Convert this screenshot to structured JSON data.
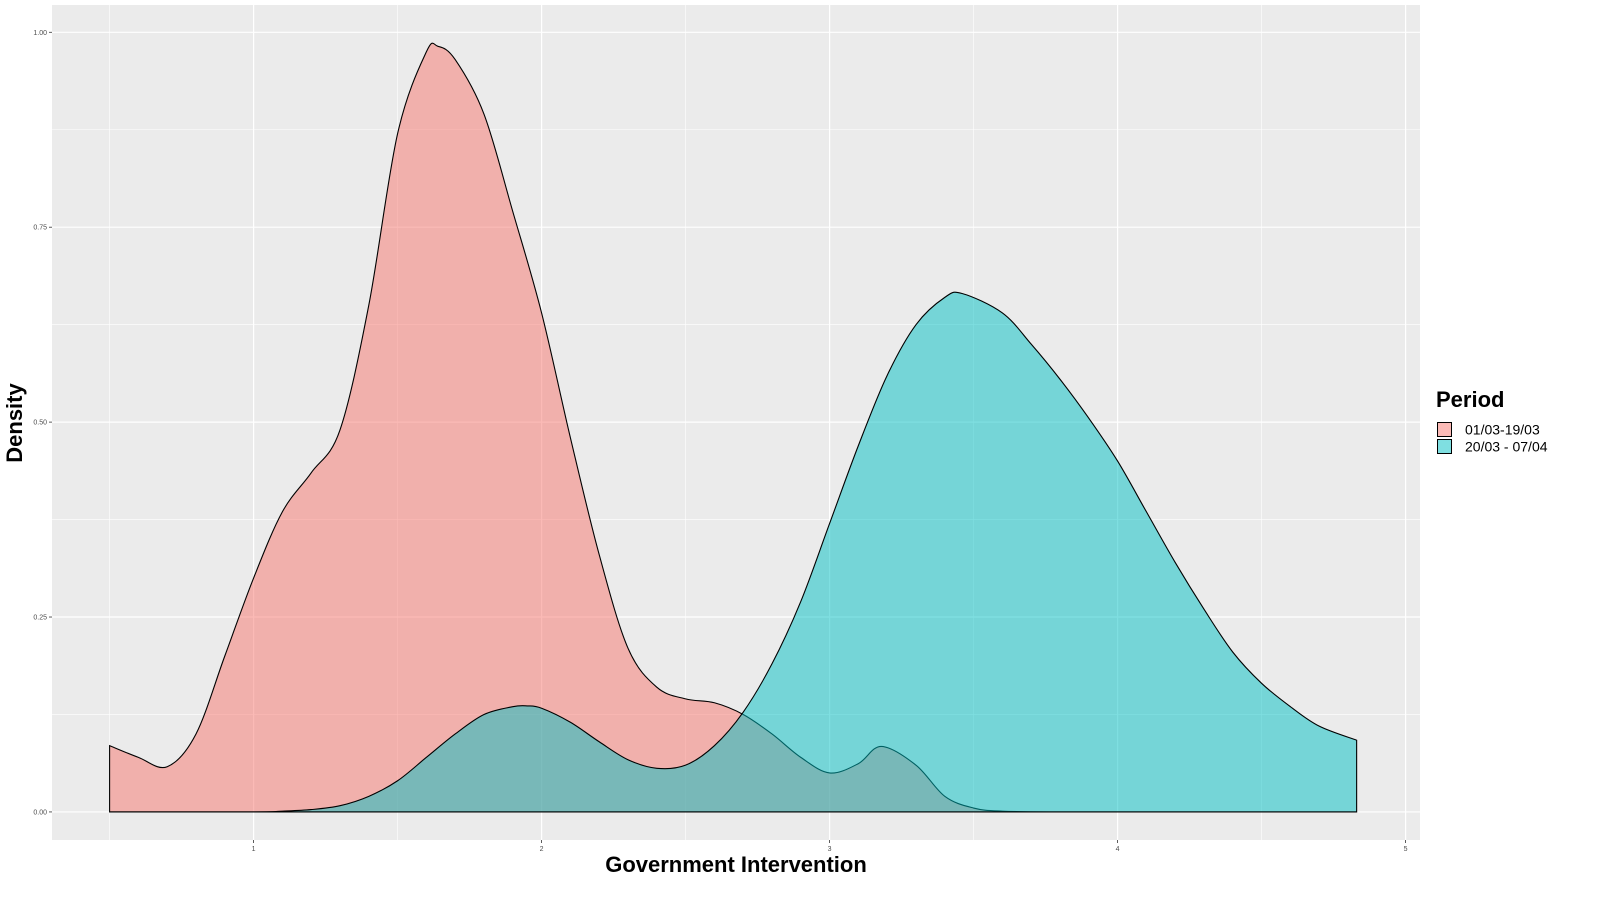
{
  "chart_data": {
    "type": "area",
    "subtype": "density",
    "title": "",
    "xlabel": "Government Intervention",
    "ylabel": "Density",
    "xlim": [
      0.3,
      5.05
    ],
    "ylim": [
      -0.036,
      1.035
    ],
    "x_ticks": [
      1,
      2,
      3,
      4,
      5
    ],
    "y_ticks": [
      0.0,
      0.25,
      0.5,
      0.75,
      1.0
    ],
    "x_tick_labels": [
      "1",
      "2",
      "3",
      "4",
      "5"
    ],
    "y_tick_labels": [
      "0.00",
      "0.25",
      "0.50",
      "0.75",
      "1.00"
    ],
    "grid": true,
    "legend": {
      "title": "Period",
      "position": "right"
    },
    "series": [
      {
        "name": "01/03-19/03",
        "color": "#F8766D",
        "points": [
          [
            0.5,
            0.085
          ],
          [
            0.6,
            0.07
          ],
          [
            0.7,
            0.058
          ],
          [
            0.8,
            0.1
          ],
          [
            0.9,
            0.2
          ],
          [
            1.0,
            0.3
          ],
          [
            1.1,
            0.385
          ],
          [
            1.2,
            0.435
          ],
          [
            1.3,
            0.49
          ],
          [
            1.4,
            0.65
          ],
          [
            1.5,
            0.87
          ],
          [
            1.6,
            0.975
          ],
          [
            1.64,
            0.982
          ],
          [
            1.7,
            0.965
          ],
          [
            1.8,
            0.895
          ],
          [
            1.9,
            0.77
          ],
          [
            2.0,
            0.64
          ],
          [
            2.1,
            0.48
          ],
          [
            2.2,
            0.33
          ],
          [
            2.3,
            0.21
          ],
          [
            2.4,
            0.16
          ],
          [
            2.5,
            0.145
          ],
          [
            2.6,
            0.14
          ],
          [
            2.7,
            0.125
          ],
          [
            2.8,
            0.1
          ],
          [
            2.9,
            0.07
          ],
          [
            3.0,
            0.05
          ],
          [
            3.1,
            0.062
          ],
          [
            3.18,
            0.084
          ],
          [
            3.3,
            0.06
          ],
          [
            3.4,
            0.02
          ],
          [
            3.5,
            0.005
          ],
          [
            3.6,
            0.001
          ],
          [
            3.8,
            0.0
          ],
          [
            4.0,
            0.0
          ],
          [
            4.5,
            0.0
          ],
          [
            4.83,
            0.0
          ]
        ]
      },
      {
        "name": "20/03 - 07/04",
        "color": "#00BFC4",
        "points": [
          [
            0.5,
            0.0
          ],
          [
            1.0,
            0.0
          ],
          [
            1.1,
            0.001
          ],
          [
            1.2,
            0.003
          ],
          [
            1.3,
            0.008
          ],
          [
            1.4,
            0.02
          ],
          [
            1.5,
            0.04
          ],
          [
            1.6,
            0.07
          ],
          [
            1.7,
            0.1
          ],
          [
            1.8,
            0.125
          ],
          [
            1.9,
            0.135
          ],
          [
            1.95,
            0.136
          ],
          [
            2.0,
            0.133
          ],
          [
            2.1,
            0.115
          ],
          [
            2.2,
            0.09
          ],
          [
            2.3,
            0.067
          ],
          [
            2.4,
            0.056
          ],
          [
            2.5,
            0.06
          ],
          [
            2.6,
            0.085
          ],
          [
            2.7,
            0.128
          ],
          [
            2.8,
            0.19
          ],
          [
            2.9,
            0.27
          ],
          [
            3.0,
            0.37
          ],
          [
            3.1,
            0.47
          ],
          [
            3.2,
            0.56
          ],
          [
            3.3,
            0.625
          ],
          [
            3.4,
            0.66
          ],
          [
            3.46,
            0.665
          ],
          [
            3.6,
            0.64
          ],
          [
            3.7,
            0.6
          ],
          [
            3.8,
            0.555
          ],
          [
            3.9,
            0.505
          ],
          [
            4.0,
            0.45
          ],
          [
            4.1,
            0.385
          ],
          [
            4.2,
            0.32
          ],
          [
            4.3,
            0.26
          ],
          [
            4.4,
            0.205
          ],
          [
            4.5,
            0.165
          ],
          [
            4.6,
            0.135
          ],
          [
            4.7,
            0.11
          ],
          [
            4.83,
            0.092
          ]
        ]
      }
    ]
  }
}
